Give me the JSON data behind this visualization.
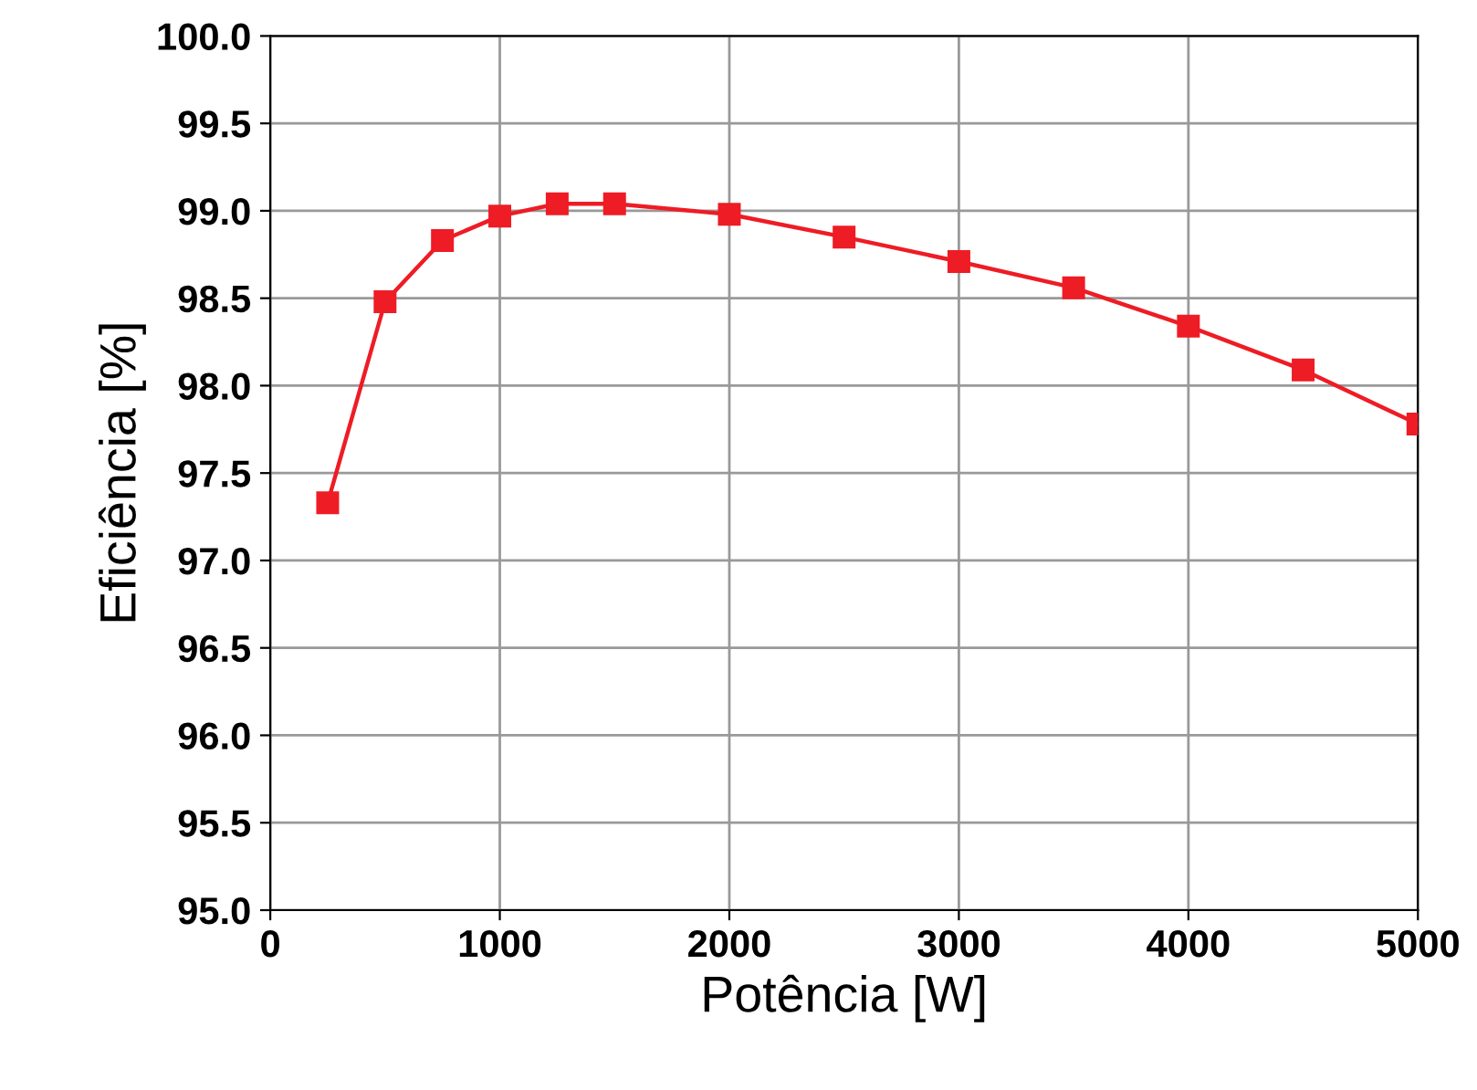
{
  "chart_data": {
    "type": "line",
    "xlabel": "Potência [W]",
    "ylabel": "Eficiência [%]",
    "series": [
      {
        "color": "#ee1c25",
        "x": [
          250,
          500,
          750,
          1000,
          1250,
          1500,
          2000,
          2500,
          3000,
          3500,
          4000,
          4500,
          5000
        ],
        "values": [
          97.33,
          98.48,
          98.83,
          98.97,
          99.04,
          99.04,
          98.98,
          98.85,
          98.71,
          98.56,
          98.34,
          98.09,
          97.78
        ]
      }
    ],
    "xlim": [
      0,
      5000
    ],
    "xticks": [
      0,
      1000,
      2000,
      3000,
      4000,
      5000
    ],
    "ylim": [
      95.0,
      100.0
    ],
    "yticks": [
      {
        "value": 95.0,
        "label": "95.0"
      },
      {
        "value": 95.5,
        "label": "95.5"
      },
      {
        "value": 96.0,
        "label": "96.0"
      },
      {
        "value": 96.5,
        "label": "96.5"
      },
      {
        "value": 97.0,
        "label": "97.0"
      },
      {
        "value": 97.5,
        "label": "97.5"
      },
      {
        "value": 98.0,
        "label": "98.0"
      },
      {
        "value": 98.5,
        "label": "98.5"
      },
      {
        "value": 99.0,
        "label": "99.0"
      },
      {
        "value": 99.5,
        "label": "99.5"
      },
      {
        "value": 100.0,
        "label": "100.0"
      }
    ],
    "grid": true,
    "marker": "square",
    "line_style": "solid",
    "legend": false
  }
}
